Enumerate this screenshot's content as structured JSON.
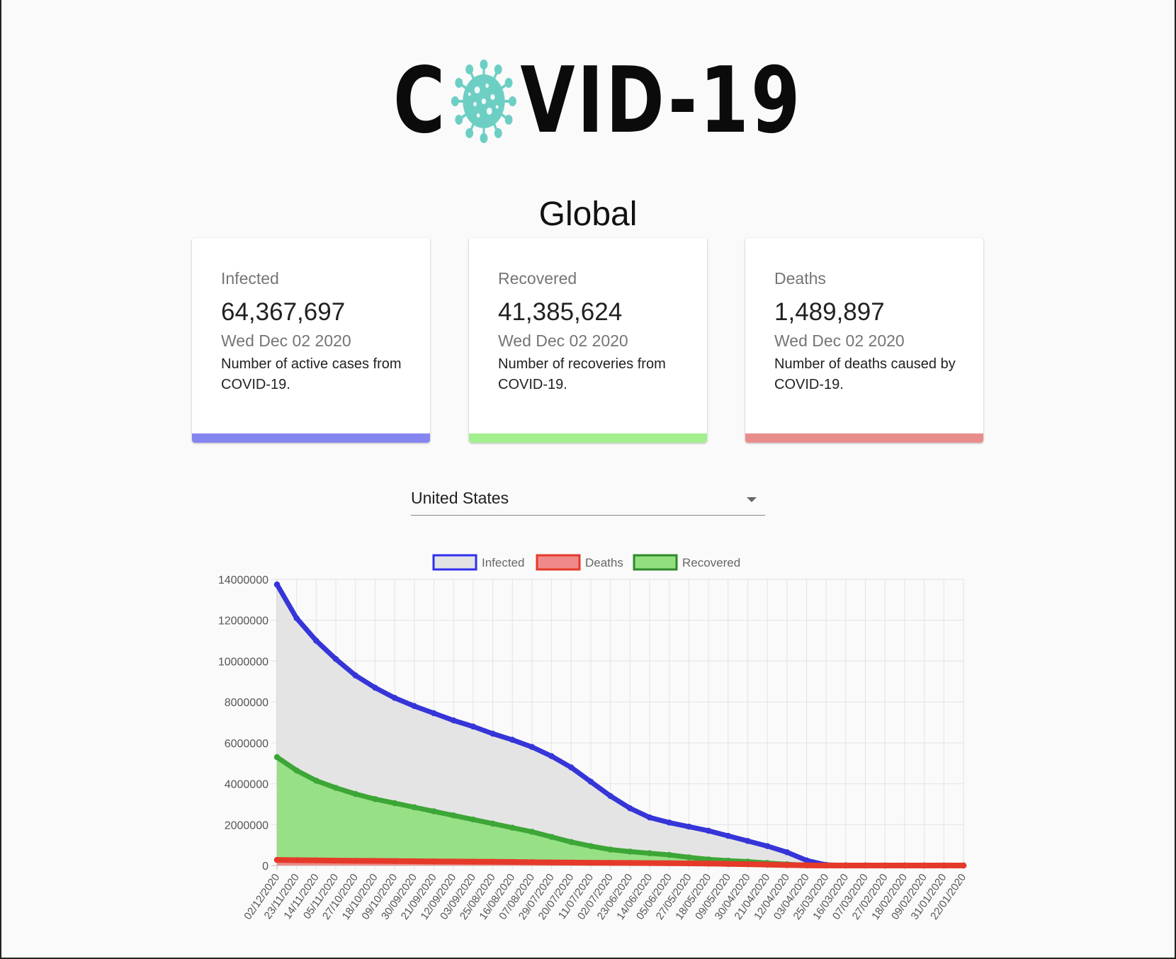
{
  "logo": {
    "text_left": "C",
    "text_right": "VID-19",
    "virus_color": "#6dcfc4",
    "icon": "virus-icon"
  },
  "region_title": "Global",
  "cards": [
    {
      "label": "Infected",
      "value": "64,367,697",
      "date": "Wed Dec 02 2020",
      "description": "Number of active cases from COVID-19.",
      "accent": "#8585f0"
    },
    {
      "label": "Recovered",
      "value": "41,385,624",
      "date": "Wed Dec 02 2020",
      "description": "Number of recoveries from COVID-19.",
      "accent": "#a3f08f"
    },
    {
      "label": "Deaths",
      "value": "1,489,897",
      "date": "Wed Dec 02 2020",
      "description": "Number of deaths caused by COVID-19.",
      "accent": "#e98c8c"
    }
  ],
  "country_select": {
    "selected": "United States",
    "icon": "caret-down-icon"
  },
  "chart_data": {
    "type": "line",
    "title": "",
    "xlabel": "",
    "ylabel": "",
    "ylim": [
      0,
      14000000
    ],
    "yticks": [
      0,
      2000000,
      4000000,
      6000000,
      8000000,
      10000000,
      12000000,
      14000000
    ],
    "ytick_labels": [
      "0",
      "2000000",
      "4000000",
      "6000000",
      "8000000",
      "10000000",
      "12000000",
      "14000000"
    ],
    "x_tick_labels": [
      "02/12/2020",
      "23/11/2020",
      "14/11/2020",
      "05/11/2020",
      "27/10/2020",
      "18/10/2020",
      "09/10/2020",
      "30/09/2020",
      "21/09/2020",
      "12/09/2020",
      "03/09/2020",
      "25/08/2020",
      "16/08/2020",
      "07/08/2020",
      "29/07/2020",
      "20/07/2020",
      "11/07/2020",
      "02/07/2020",
      "23/06/2020",
      "14/06/2020",
      "05/06/2020",
      "27/05/2020",
      "18/05/2020",
      "09/05/2020",
      "30/04/2020",
      "21/04/2020",
      "12/04/2020",
      "03/04/2020",
      "25/03/2020",
      "16/03/2020",
      "07/03/2020",
      "27/02/2020",
      "18/02/2020",
      "09/02/2020",
      "31/01/2020",
      "22/01/2020"
    ],
    "x_order": "newest to oldest",
    "grid": true,
    "legend_position": "top-center",
    "series": [
      {
        "name": "Infected",
        "line_color": "#3535d8",
        "fill_color": "#e3e3e3",
        "border_color_legend": "#2f2ff0",
        "values": [
          13750000,
          12100000,
          11000000,
          10100000,
          9300000,
          8700000,
          8200000,
          7800000,
          7450000,
          7100000,
          6800000,
          6450000,
          6150000,
          5800000,
          5350000,
          4800000,
          4100000,
          3400000,
          2800000,
          2350000,
          2100000,
          1900000,
          1700000,
          1450000,
          1200000,
          950000,
          650000,
          250000,
          30000,
          10000,
          3000,
          100,
          50,
          20,
          10,
          1
        ]
      },
      {
        "name": "Deaths",
        "line_color": "#e53a2a",
        "fill_color": "#f08a8a",
        "border_color_legend": "#e53a2a",
        "values": [
          275000,
          260000,
          250000,
          240000,
          230000,
          225000,
          215000,
          210000,
          200000,
          195000,
          188000,
          180000,
          172000,
          162000,
          152000,
          143000,
          135000,
          130000,
          124000,
          118000,
          112000,
          104000,
          95000,
          80000,
          65000,
          45000,
          22000,
          7000,
          1000,
          90,
          20,
          0,
          0,
          0,
          0,
          0
        ]
      },
      {
        "name": "Recovered",
        "line_color": "#3ca636",
        "fill_color": "#92df80",
        "border_color_legend": "#2f8a2a",
        "values": [
          5300000,
          4650000,
          4150000,
          3800000,
          3500000,
          3250000,
          3050000,
          2850000,
          2650000,
          2450000,
          2250000,
          2050000,
          1850000,
          1650000,
          1400000,
          1150000,
          950000,
          780000,
          680000,
          600000,
          520000,
          400000,
          300000,
          240000,
          190000,
          120000,
          60000,
          15000,
          3000,
          500,
          100,
          10,
          5,
          0,
          0,
          0
        ]
      }
    ]
  }
}
